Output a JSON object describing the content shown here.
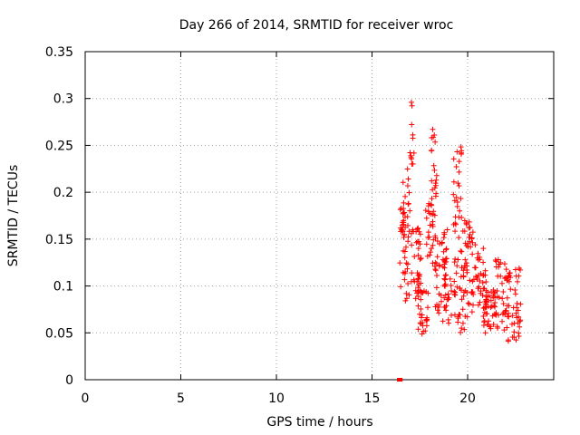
{
  "chart_data": {
    "type": "scatter",
    "title": "Day 266 of 2014, SRMTID for receiver wroc",
    "xlabel": "GPS time / hours",
    "ylabel": "SRMTID / TECUs",
    "xlim": [
      0,
      24.5
    ],
    "ylim": [
      0,
      0.35
    ],
    "x_ticks": [
      0,
      5,
      10,
      15,
      20
    ],
    "x_tick_labels": [
      "0",
      "5",
      "10",
      "15",
      "20"
    ],
    "y_ticks": [
      0,
      0.05,
      0.1,
      0.15,
      0.2,
      0.25,
      0.3,
      0.35
    ],
    "y_tick_labels": [
      "0",
      "0.05",
      "0.1",
      "0.15",
      "0.2",
      "0.25",
      "0.3",
      "0.35"
    ],
    "grid": true,
    "marker": "plus",
    "marker_color": "#ff0000",
    "zero_marker_color": "#ff0000",
    "zero_points_x": [
      16.4,
      16.45,
      16.5
    ],
    "clusters": [
      {
        "x0": 16.45,
        "x1": 16.9,
        "ymin": 0.08,
        "ymax": 0.19,
        "n": 32
      },
      {
        "x0": 16.6,
        "x1": 17.1,
        "ymin": 0.09,
        "ymax": 0.235,
        "n": 26
      },
      {
        "x0": 16.95,
        "x1": 17.2,
        "ymin": 0.23,
        "ymax": 0.307,
        "n": 12
      },
      {
        "x0": 17.1,
        "x1": 17.6,
        "ymin": 0.085,
        "ymax": 0.17,
        "n": 34
      },
      {
        "x0": 17.4,
        "x1": 17.95,
        "ymin": 0.045,
        "ymax": 0.1,
        "n": 28
      },
      {
        "x0": 17.8,
        "x1": 18.3,
        "ymin": 0.12,
        "ymax": 0.205,
        "n": 30
      },
      {
        "x0": 18.1,
        "x1": 18.5,
        "ymin": 0.15,
        "ymax": 0.27,
        "n": 18
      },
      {
        "x0": 18.3,
        "x1": 19.0,
        "ymin": 0.07,
        "ymax": 0.16,
        "n": 40
      },
      {
        "x0": 18.7,
        "x1": 19.2,
        "ymin": 0.06,
        "ymax": 0.13,
        "n": 24
      },
      {
        "x0": 19.2,
        "x1": 19.7,
        "ymin": 0.12,
        "ymax": 0.25,
        "n": 32
      },
      {
        "x0": 19.3,
        "x1": 20.0,
        "ymin": 0.05,
        "ymax": 0.13,
        "n": 36
      },
      {
        "x0": 19.7,
        "x1": 20.3,
        "ymin": 0.08,
        "ymax": 0.17,
        "n": 30
      },
      {
        "x0": 20.2,
        "x1": 21.0,
        "ymin": 0.07,
        "ymax": 0.15,
        "n": 40
      },
      {
        "x0": 20.8,
        "x1": 21.5,
        "ymin": 0.05,
        "ymax": 0.1,
        "n": 40
      },
      {
        "x0": 21.4,
        "x1": 22.1,
        "ymin": 0.05,
        "ymax": 0.13,
        "n": 40
      },
      {
        "x0": 22.0,
        "x1": 22.8,
        "ymin": 0.04,
        "ymax": 0.12,
        "n": 44
      }
    ]
  }
}
